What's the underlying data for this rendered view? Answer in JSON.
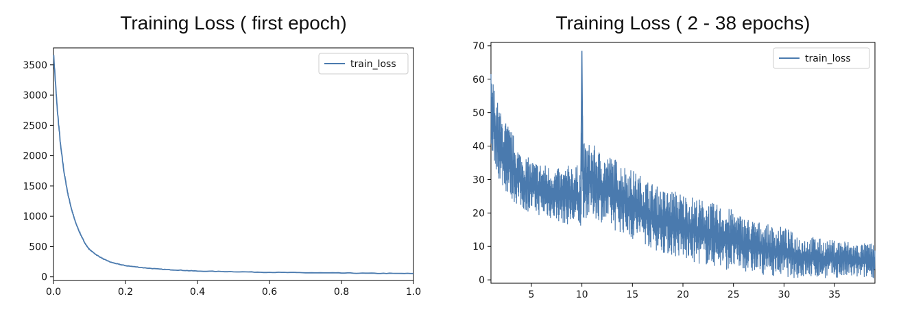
{
  "chart_data": [
    {
      "type": "line",
      "title": "Training Loss ( first epoch)",
      "xlabel": "",
      "ylabel": "",
      "xlim": [
        0,
        1.0
      ],
      "ylim": [
        -60,
        3780
      ],
      "x_ticks": [
        0.0,
        0.2,
        0.4,
        0.6,
        0.8,
        1.0
      ],
      "x_tick_labels": [
        "0.0",
        "0.2",
        "0.4",
        "0.6",
        "0.8",
        "1.0"
      ],
      "y_ticks": [
        0,
        500,
        1000,
        1500,
        2000,
        2500,
        3000,
        3500
      ],
      "y_tick_labels": [
        "0",
        "500",
        "1000",
        "1500",
        "2000",
        "2500",
        "3000",
        "3500"
      ],
      "grid": false,
      "legend": "upper-right",
      "series": [
        {
          "name": "train_loss",
          "color": "#4a7aae",
          "x": [
            0.0,
            0.01,
            0.02,
            0.03,
            0.04,
            0.05,
            0.06,
            0.07,
            0.08,
            0.09,
            0.1,
            0.12,
            0.14,
            0.16,
            0.18,
            0.2,
            0.25,
            0.3,
            0.35,
            0.4,
            0.5,
            0.6,
            0.7,
            0.8,
            0.9,
            1.0
          ],
          "y": [
            3700,
            2800,
            2150,
            1700,
            1370,
            1120,
            920,
            770,
            640,
            530,
            450,
            360,
            290,
            240,
            210,
            185,
            150,
            125,
            110,
            95,
            85,
            75,
            68,
            63,
            58,
            55
          ]
        }
      ]
    },
    {
      "type": "line",
      "title": "Training Loss ( 2 - 38 epochs)",
      "xlabel": "",
      "ylabel": "",
      "xlim": [
        1,
        39
      ],
      "ylim": [
        -1,
        71
      ],
      "x_ticks": [
        5,
        10,
        15,
        20,
        25,
        30,
        35
      ],
      "x_tick_labels": [
        "5",
        "10",
        "15",
        "20",
        "25",
        "30",
        "35"
      ],
      "y_ticks": [
        0,
        10,
        20,
        30,
        40,
        50,
        60,
        70
      ],
      "y_tick_labels": [
        "0",
        "10",
        "20",
        "30",
        "40",
        "50",
        "60",
        "70"
      ],
      "grid": false,
      "legend": "upper-right",
      "series": [
        {
          "name": "train_loss",
          "color": "#4a7aae",
          "x": [
            1,
            1.5,
            2,
            3,
            4,
            5,
            6,
            7,
            8,
            9,
            9.9,
            10,
            10.1,
            11,
            12,
            13,
            14,
            15,
            16,
            17,
            18,
            19,
            20,
            21,
            22,
            23,
            24,
            25,
            26,
            27,
            28,
            29,
            30,
            31,
            32,
            33,
            34,
            35,
            36,
            37,
            38,
            39
          ],
          "high": [
            63,
            55,
            50,
            45,
            38,
            36,
            35,
            34,
            33,
            35,
            34,
            68.5,
            41,
            41,
            38,
            37,
            35,
            33,
            31,
            29,
            27,
            27,
            26,
            25,
            24,
            23,
            22,
            21,
            19,
            18,
            17,
            16,
            16,
            14,
            13,
            13,
            12,
            12,
            12,
            11,
            11,
            11
          ],
          "low": [
            38,
            33,
            28,
            24,
            21,
            20,
            19,
            18,
            17,
            16,
            15,
            17,
            18,
            19,
            17,
            15,
            14,
            12,
            11,
            9,
            8,
            7,
            6,
            5,
            4.5,
            4,
            3,
            3,
            2.5,
            2,
            1.5,
            1.2,
            1,
            0.5,
            0.5,
            0.5,
            0.5,
            0.5,
            0.5,
            0.5,
            0.5,
            0.5
          ]
        }
      ]
    }
  ]
}
